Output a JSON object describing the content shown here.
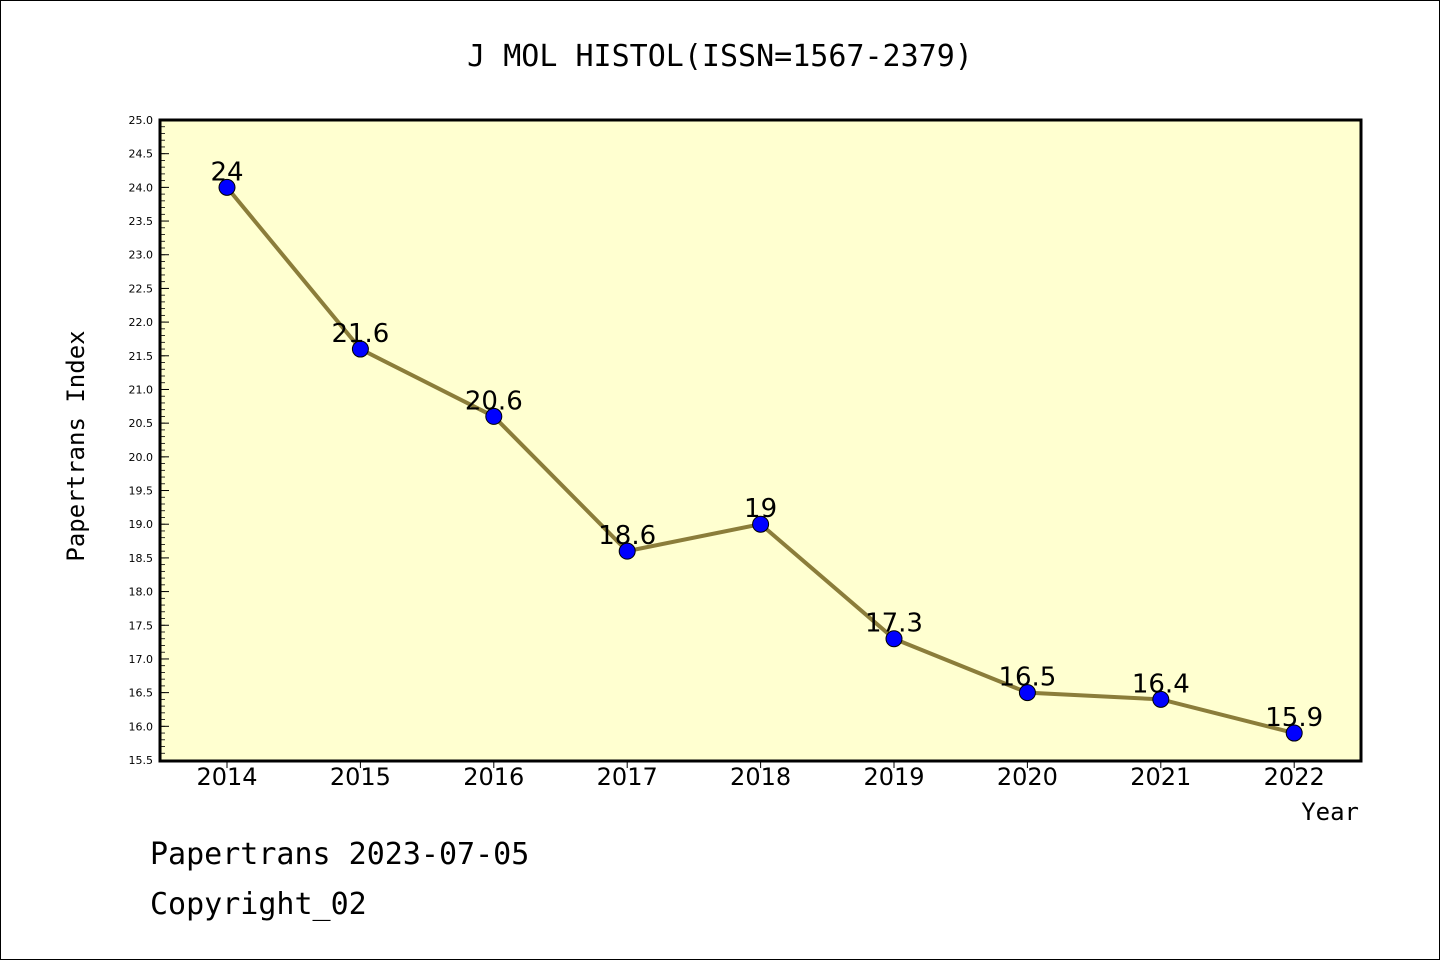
{
  "chart_data": {
    "type": "line",
    "title": "J MOL HISTOL(ISSN=1567-2379)",
    "xlabel": "Year",
    "ylabel": "Papertrans Index",
    "categories": [
      "2014",
      "2015",
      "2016",
      "2017",
      "2018",
      "2019",
      "2020",
      "2021",
      "2022"
    ],
    "series": [
      {
        "values": [
          24,
          21.6,
          20.6,
          18.6,
          19,
          17.3,
          16.5,
          16.4,
          15.9
        ],
        "labels": [
          "24",
          "21.6",
          "20.6",
          "18.6",
          "19",
          "17.3",
          "16.5",
          "16.4",
          "15.9"
        ],
        "line_color": "#8b7d3a",
        "marker_color": "#0000ff"
      }
    ],
    "ylim": [
      15.5,
      25.0
    ],
    "yticks": [
      "15.5",
      "16.0",
      "16.5",
      "17.0",
      "17.5",
      "18.0",
      "18.5",
      "19.0",
      "19.5",
      "20.0",
      "20.5",
      "21.0",
      "21.5",
      "22.0",
      "22.5",
      "23.0",
      "23.5",
      "24.0",
      "24.5",
      "25.0"
    ],
    "plot_background": "#ffffd0",
    "grid": false,
    "legend": "none"
  },
  "footer": {
    "line1": "Papertrans 2023-07-05",
    "line2": "Copyright_02"
  }
}
